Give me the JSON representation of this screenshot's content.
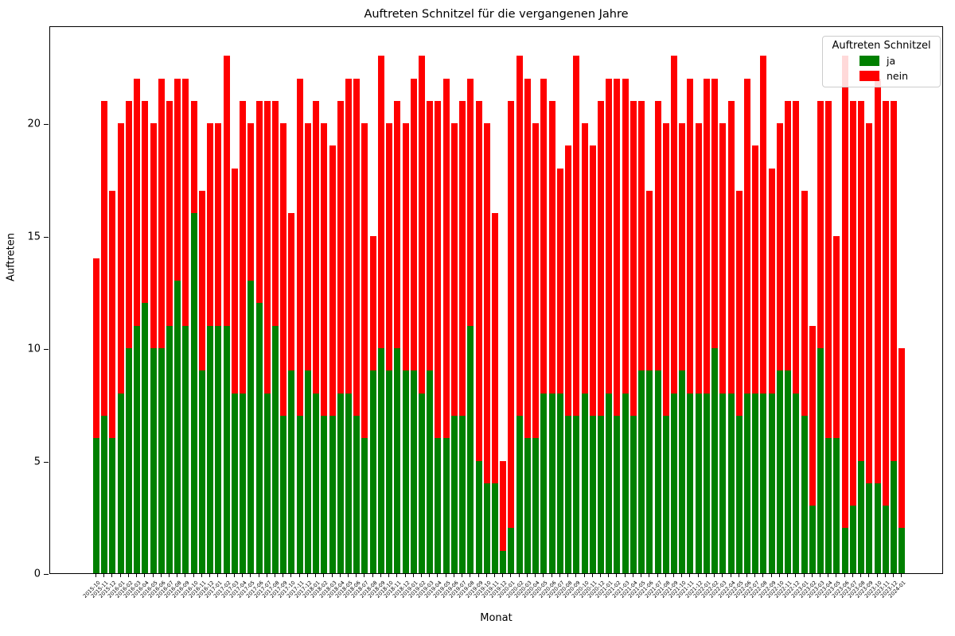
{
  "figure_title": "Auftreten Schnitzel für die vergangenen Jahre",
  "legend": {
    "title": "Auftreten Schnitzel",
    "items": [
      {
        "label": "ja",
        "color": "#008000"
      },
      {
        "label": "nein",
        "color": "#ff0000"
      }
    ]
  },
  "chart_data": {
    "type": "bar",
    "stacked": true,
    "title": "Auftreten Schnitzel für die vergangenen Jahre",
    "xlabel": "Monat",
    "ylabel": "Auftreten",
    "ylim": [
      0,
      24.35
    ],
    "yticks": [
      0,
      5,
      10,
      15,
      20
    ],
    "grid": false,
    "legend_position": "upper right",
    "categories": [
      "2015-10",
      "2015-11",
      "2015-12",
      "2016-01",
      "2016-02",
      "2016-03",
      "2016-04",
      "2016-05",
      "2016-06",
      "2016-07",
      "2016-08",
      "2016-09",
      "2016-10",
      "2016-11",
      "2016-12",
      "2017-01",
      "2017-02",
      "2017-03",
      "2017-04",
      "2017-05",
      "2017-06",
      "2017-07",
      "2017-08",
      "2017-09",
      "2017-10",
      "2017-11",
      "2017-12",
      "2018-01",
      "2018-02",
      "2018-03",
      "2018-04",
      "2018-05",
      "2018-06",
      "2018-07",
      "2018-08",
      "2018-09",
      "2018-10",
      "2018-11",
      "2018-12",
      "2019-01",
      "2019-02",
      "2019-03",
      "2019-04",
      "2019-05",
      "2019-06",
      "2019-07",
      "2019-08",
      "2019-09",
      "2019-10",
      "2019-11",
      "2019-12",
      "2020-01",
      "2020-02",
      "2020-03",
      "2020-04",
      "2020-05",
      "2020-06",
      "2020-07",
      "2020-08",
      "2020-09",
      "2020-10",
      "2020-11",
      "2020-12",
      "2021-01",
      "2021-02",
      "2021-03",
      "2021-04",
      "2021-05",
      "2021-06",
      "2021-07",
      "2021-08",
      "2021-09",
      "2021-10",
      "2021-11",
      "2021-12",
      "2022-01",
      "2022-02",
      "2022-03",
      "2022-04",
      "2022-05",
      "2022-06",
      "2022-07",
      "2022-08",
      "2022-09",
      "2022-10",
      "2022-11",
      "2022-12",
      "2023-01",
      "2023-02",
      "2023-03",
      "2023-04",
      "2023-05",
      "2023-06",
      "2023-07",
      "2023-08",
      "2023-09",
      "2023-10",
      "2023-11",
      "2023-12",
      "2024-01"
    ],
    "series": [
      {
        "name": "ja",
        "color": "#008000",
        "values": [
          6,
          7,
          6,
          8,
          10,
          11,
          12,
          10,
          10,
          11,
          13,
          11,
          16,
          9,
          11,
          11,
          11,
          8,
          8,
          13,
          12,
          8,
          11,
          7,
          9,
          7,
          9,
          8,
          7,
          7,
          8,
          8,
          7,
          6,
          9,
          10,
          9,
          10,
          9,
          9,
          8,
          9,
          6,
          6,
          7,
          7,
          11,
          5,
          4,
          4,
          1,
          2,
          7,
          6,
          6,
          8,
          8,
          8,
          7,
          7,
          8,
          7,
          7,
          8,
          7,
          8,
          7,
          9,
          9,
          9,
          7,
          8,
          9,
          8,
          8,
          8,
          10,
          8,
          8,
          7,
          8,
          8,
          8,
          8,
          9,
          9,
          8,
          7,
          3,
          10,
          6,
          6,
          2,
          3,
          5,
          4,
          4,
          3,
          5,
          2
        ]
      },
      {
        "name": "nein",
        "color": "#ff0000",
        "values": [
          8,
          14,
          11,
          12,
          11,
          11,
          9,
          10,
          12,
          10,
          9,
          11,
          5,
          8,
          9,
          9,
          12,
          10,
          13,
          7,
          9,
          13,
          10,
          13,
          7,
          15,
          11,
          13,
          13,
          12,
          13,
          14,
          15,
          14,
          6,
          13,
          11,
          11,
          11,
          13,
          15,
          12,
          15,
          16,
          13,
          14,
          11,
          16,
          16,
          12,
          4,
          19,
          16,
          16,
          14,
          14,
          13,
          10,
          12,
          16,
          12,
          12,
          14,
          14,
          15,
          14,
          14,
          12,
          8,
          12,
          13,
          15,
          11,
          14,
          12,
          14,
          12,
          12,
          13,
          10,
          14,
          11,
          15,
          10,
          11,
          12,
          13,
          10,
          8,
          11,
          15,
          9,
          21,
          18,
          16,
          16,
          18,
          18,
          16,
          8
        ]
      }
    ]
  }
}
